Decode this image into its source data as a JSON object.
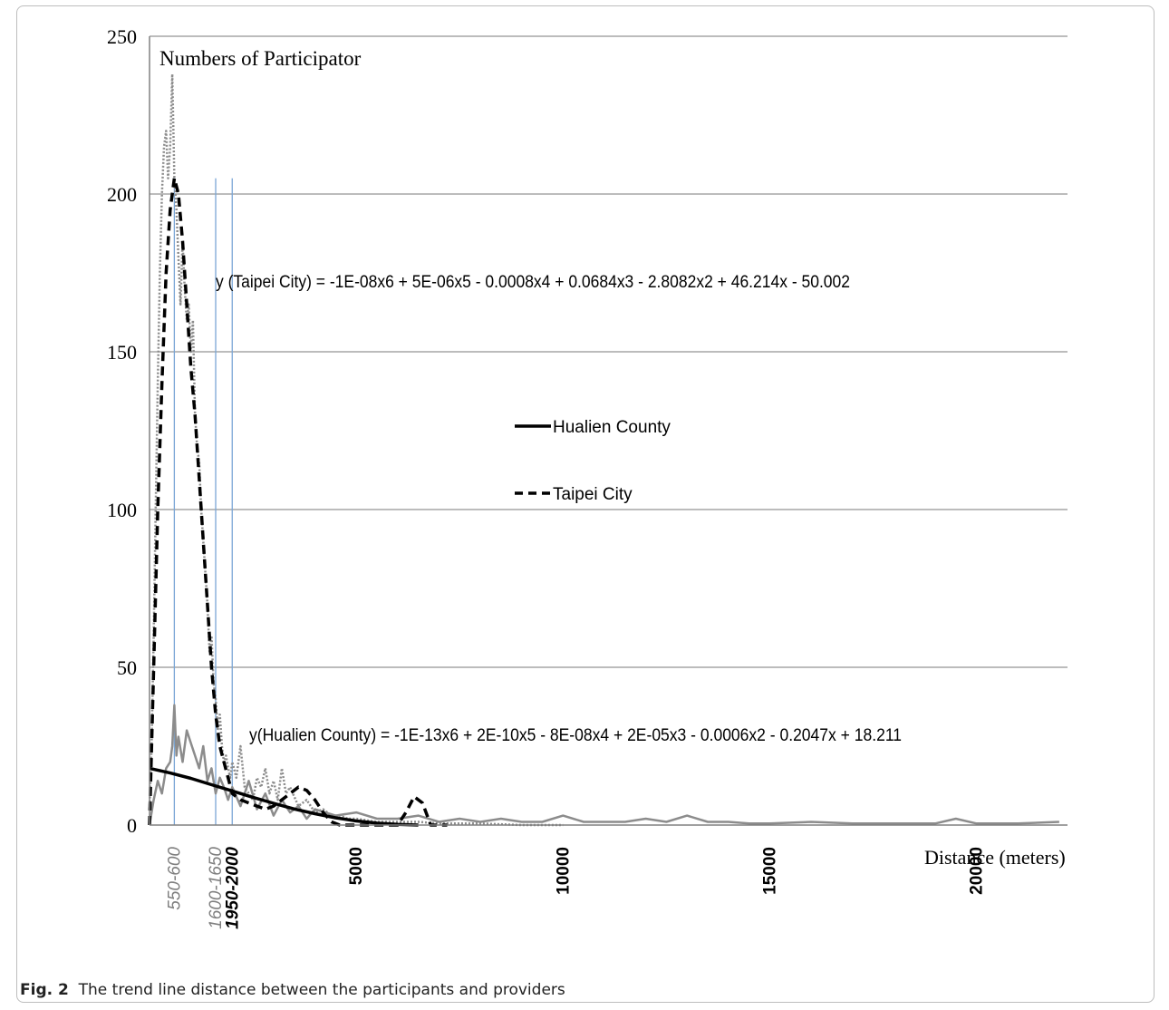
{
  "caption": {
    "label": "Fig. 2",
    "text": "The trend line distance between the participants and providers"
  },
  "chart_data": {
    "type": "line",
    "ylabel": "Numbers of Participator",
    "xlabel": "Distance (meters)",
    "ylim": [
      0,
      250
    ],
    "xlim": [
      0,
      22200
    ],
    "grid": true,
    "legend_position": "center",
    "y_ticks": [
      "0",
      "50",
      "100",
      "150",
      "200",
      "250"
    ],
    "x_ticks": [
      {
        "label": "550-600",
        "value": 600,
        "italic": true,
        "bold": false,
        "color": "#7f7f7f"
      },
      {
        "label": "1600-1650",
        "value": 1600,
        "italic": true,
        "bold": false,
        "color": "#7f7f7f"
      },
      {
        "label": "1950-2000",
        "value": 2000,
        "italic": true,
        "bold": true,
        "color": "#000000"
      },
      {
        "label": "5000",
        "value": 5000,
        "italic": false,
        "bold": true,
        "color": "#000000"
      },
      {
        "label": "10000",
        "value": 10000,
        "italic": false,
        "bold": true,
        "color": "#000000"
      },
      {
        "label": "15000",
        "value": 15000,
        "italic": false,
        "bold": true,
        "color": "#000000"
      },
      {
        "label": "20000",
        "value": 20000,
        "italic": false,
        "bold": true,
        "color": "#000000"
      }
    ],
    "reference_lines_x": [
      600,
      1600,
      2000
    ],
    "annotations": {
      "taipei_equation": "y (Taipei City) = -1E-08x6 + 5E-06x5 - 0.0008x4 + 0.0684x3 - 2.8082x2 + 46.214x - 50.002",
      "hualien_equation": "y(Hualien County) = -1E-13x6 + 2E-10x5 - 8E-08x4 + 2E-05x3 - 0.0006x2 - 0.2047x + 18.211"
    },
    "legend": [
      {
        "name": "Hualien County",
        "style": "solid"
      },
      {
        "name": "Taipei City",
        "style": "dashed"
      }
    ],
    "series": [
      {
        "name": "Hualien County",
        "role": "trend",
        "style": "solid",
        "color": "#000000",
        "x": [
          0,
          500,
          1000,
          1500,
          2000,
          2500,
          3000,
          3500,
          4000,
          4500,
          5000,
          5500,
          6000,
          6500
        ],
        "y": [
          18,
          16.5,
          14.8,
          12.8,
          10.8,
          8.8,
          6.9,
          5.1,
          3.6,
          2.3,
          1.3,
          0.6,
          0.2,
          0
        ]
      },
      {
        "name": "Taipei City",
        "role": "trend",
        "style": "dashed",
        "color": "#000000",
        "x": [
          0,
          100,
          200,
          300,
          400,
          500,
          600,
          700,
          800,
          900,
          1000,
          1100,
          1200,
          1300,
          1400,
          1500,
          1600,
          1700,
          1800,
          1900,
          2000,
          2100,
          2200,
          2300,
          2400,
          2600,
          2800,
          3000,
          3200,
          3400,
          3600,
          3800,
          4000,
          4200,
          4400,
          4600,
          4800,
          5000,
          5200,
          5400,
          5600,
          5800,
          6000,
          6200,
          6400,
          6600,
          6800,
          7000,
          7200
        ],
        "y": [
          0,
          50,
          100,
          140,
          175,
          195,
          205,
          200,
          185,
          165,
          145,
          130,
          110,
          90,
          70,
          50,
          35,
          25,
          20,
          15,
          10,
          9,
          8,
          7.5,
          7,
          6,
          5,
          6,
          8,
          10,
          12,
          11,
          8,
          4,
          1,
          0,
          0,
          0,
          0,
          0,
          0,
          0,
          0,
          4,
          9,
          7,
          0,
          0,
          0
        ]
      },
      {
        "name": "Taipei City",
        "role": "observed",
        "style": "dotted",
        "color": "#8c8c8c",
        "x": [
          0,
          50,
          100,
          150,
          200,
          250,
          300,
          350,
          400,
          450,
          500,
          550,
          600,
          650,
          700,
          750,
          800,
          850,
          900,
          950,
          1000,
          1050,
          1100,
          1150,
          1200,
          1250,
          1300,
          1350,
          1400,
          1450,
          1500,
          1550,
          1600,
          1650,
          1700,
          1750,
          1800,
          1850,
          1900,
          1950,
          2000,
          2100,
          2200,
          2300,
          2400,
          2500,
          2600,
          2700,
          2800,
          2900,
          3000,
          3100,
          3200,
          3300,
          3400,
          3600,
          3800,
          4000,
          4200,
          4400,
          4600,
          4800,
          5000,
          5500,
          6000,
          6500,
          7000,
          8000,
          9000,
          10000
        ],
        "y": [
          5,
          25,
          60,
          100,
          140,
          175,
          200,
          215,
          220,
          205,
          215,
          238,
          205,
          195,
          180,
          165,
          185,
          170,
          160,
          165,
          150,
          160,
          130,
          120,
          115,
          100,
          90,
          80,
          70,
          55,
          60,
          45,
          40,
          30,
          35,
          25,
          20,
          22,
          18,
          15,
          20,
          15,
          25,
          12,
          10,
          8,
          15,
          12,
          18,
          10,
          14,
          8,
          18,
          10,
          12,
          6,
          8,
          4,
          5,
          3,
          3,
          2,
          2,
          1,
          1,
          1,
          0.5,
          0.5,
          0,
          0
        ]
      },
      {
        "name": "Hualien County",
        "role": "observed",
        "style": "solid",
        "color": "#8c8c8c",
        "x": [
          0,
          100,
          200,
          300,
          400,
          500,
          550,
          600,
          650,
          700,
          800,
          900,
          1000,
          1100,
          1200,
          1300,
          1400,
          1500,
          1600,
          1700,
          1800,
          1900,
          2000,
          2200,
          2400,
          2600,
          2800,
          3000,
          3200,
          3400,
          3600,
          3800,
          4000,
          4500,
          5000,
          5500,
          6000,
          6500,
          7000,
          7500,
          8000,
          8500,
          9000,
          9500,
          10000,
          10500,
          11000,
          11500,
          12000,
          12500,
          13000,
          13500,
          14000,
          14500,
          15000,
          16000,
          17000,
          18000,
          19000,
          19500,
          20000,
          21000,
          22000
        ],
        "y": [
          0,
          8,
          14,
          10,
          18,
          20,
          25,
          38,
          22,
          28,
          20,
          30,
          26,
          22,
          18,
          25,
          14,
          18,
          10,
          15,
          12,
          8,
          12,
          6,
          14,
          5,
          10,
          3,
          8,
          4,
          6,
          2,
          5,
          3,
          4,
          2,
          2,
          3,
          1,
          2,
          1,
          2,
          1,
          1,
          3,
          1,
          1,
          1,
          2,
          1,
          3,
          1,
          1,
          0.5,
          0.5,
          1,
          0.5,
          0.5,
          0.5,
          2,
          0.5,
          0.5,
          1
        ]
      }
    ]
  }
}
